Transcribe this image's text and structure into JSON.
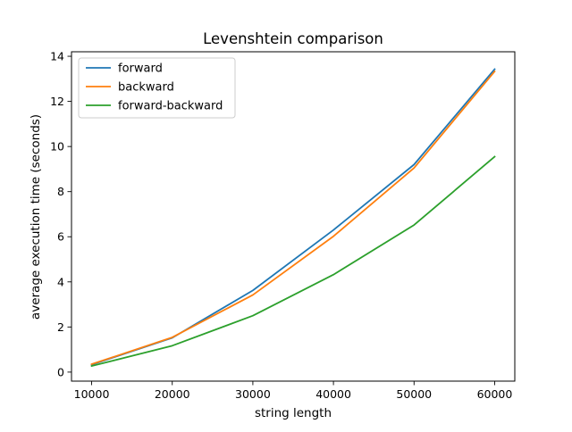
{
  "chart_data": {
    "type": "line",
    "title": "Levenshtein comparison",
    "xlabel": "string length",
    "ylabel": "average execution time (seconds)",
    "x": [
      10000,
      20000,
      30000,
      40000,
      50000,
      60000
    ],
    "x_ticks": [
      "10000",
      "20000",
      "30000",
      "40000",
      "50000",
      "60000"
    ],
    "y_ticks": [
      "0",
      "2",
      "4",
      "6",
      "8",
      "10",
      "12",
      "14"
    ],
    "xlim": [
      7500,
      62500
    ],
    "ylim": [
      -0.4,
      14.2
    ],
    "grid": false,
    "legend_position": "top-left",
    "series": [
      {
        "name": "forward",
        "color": "#1f77b4",
        "values": [
          0.33,
          1.52,
          3.62,
          6.3,
          9.2,
          13.43
        ]
      },
      {
        "name": "backward",
        "color": "#ff7f0e",
        "values": [
          0.35,
          1.54,
          3.42,
          6.02,
          9.05,
          13.33
        ]
      },
      {
        "name": "forward-backward",
        "color": "#2ca02c",
        "values": [
          0.27,
          1.17,
          2.5,
          4.32,
          6.52,
          9.55
        ]
      }
    ]
  }
}
